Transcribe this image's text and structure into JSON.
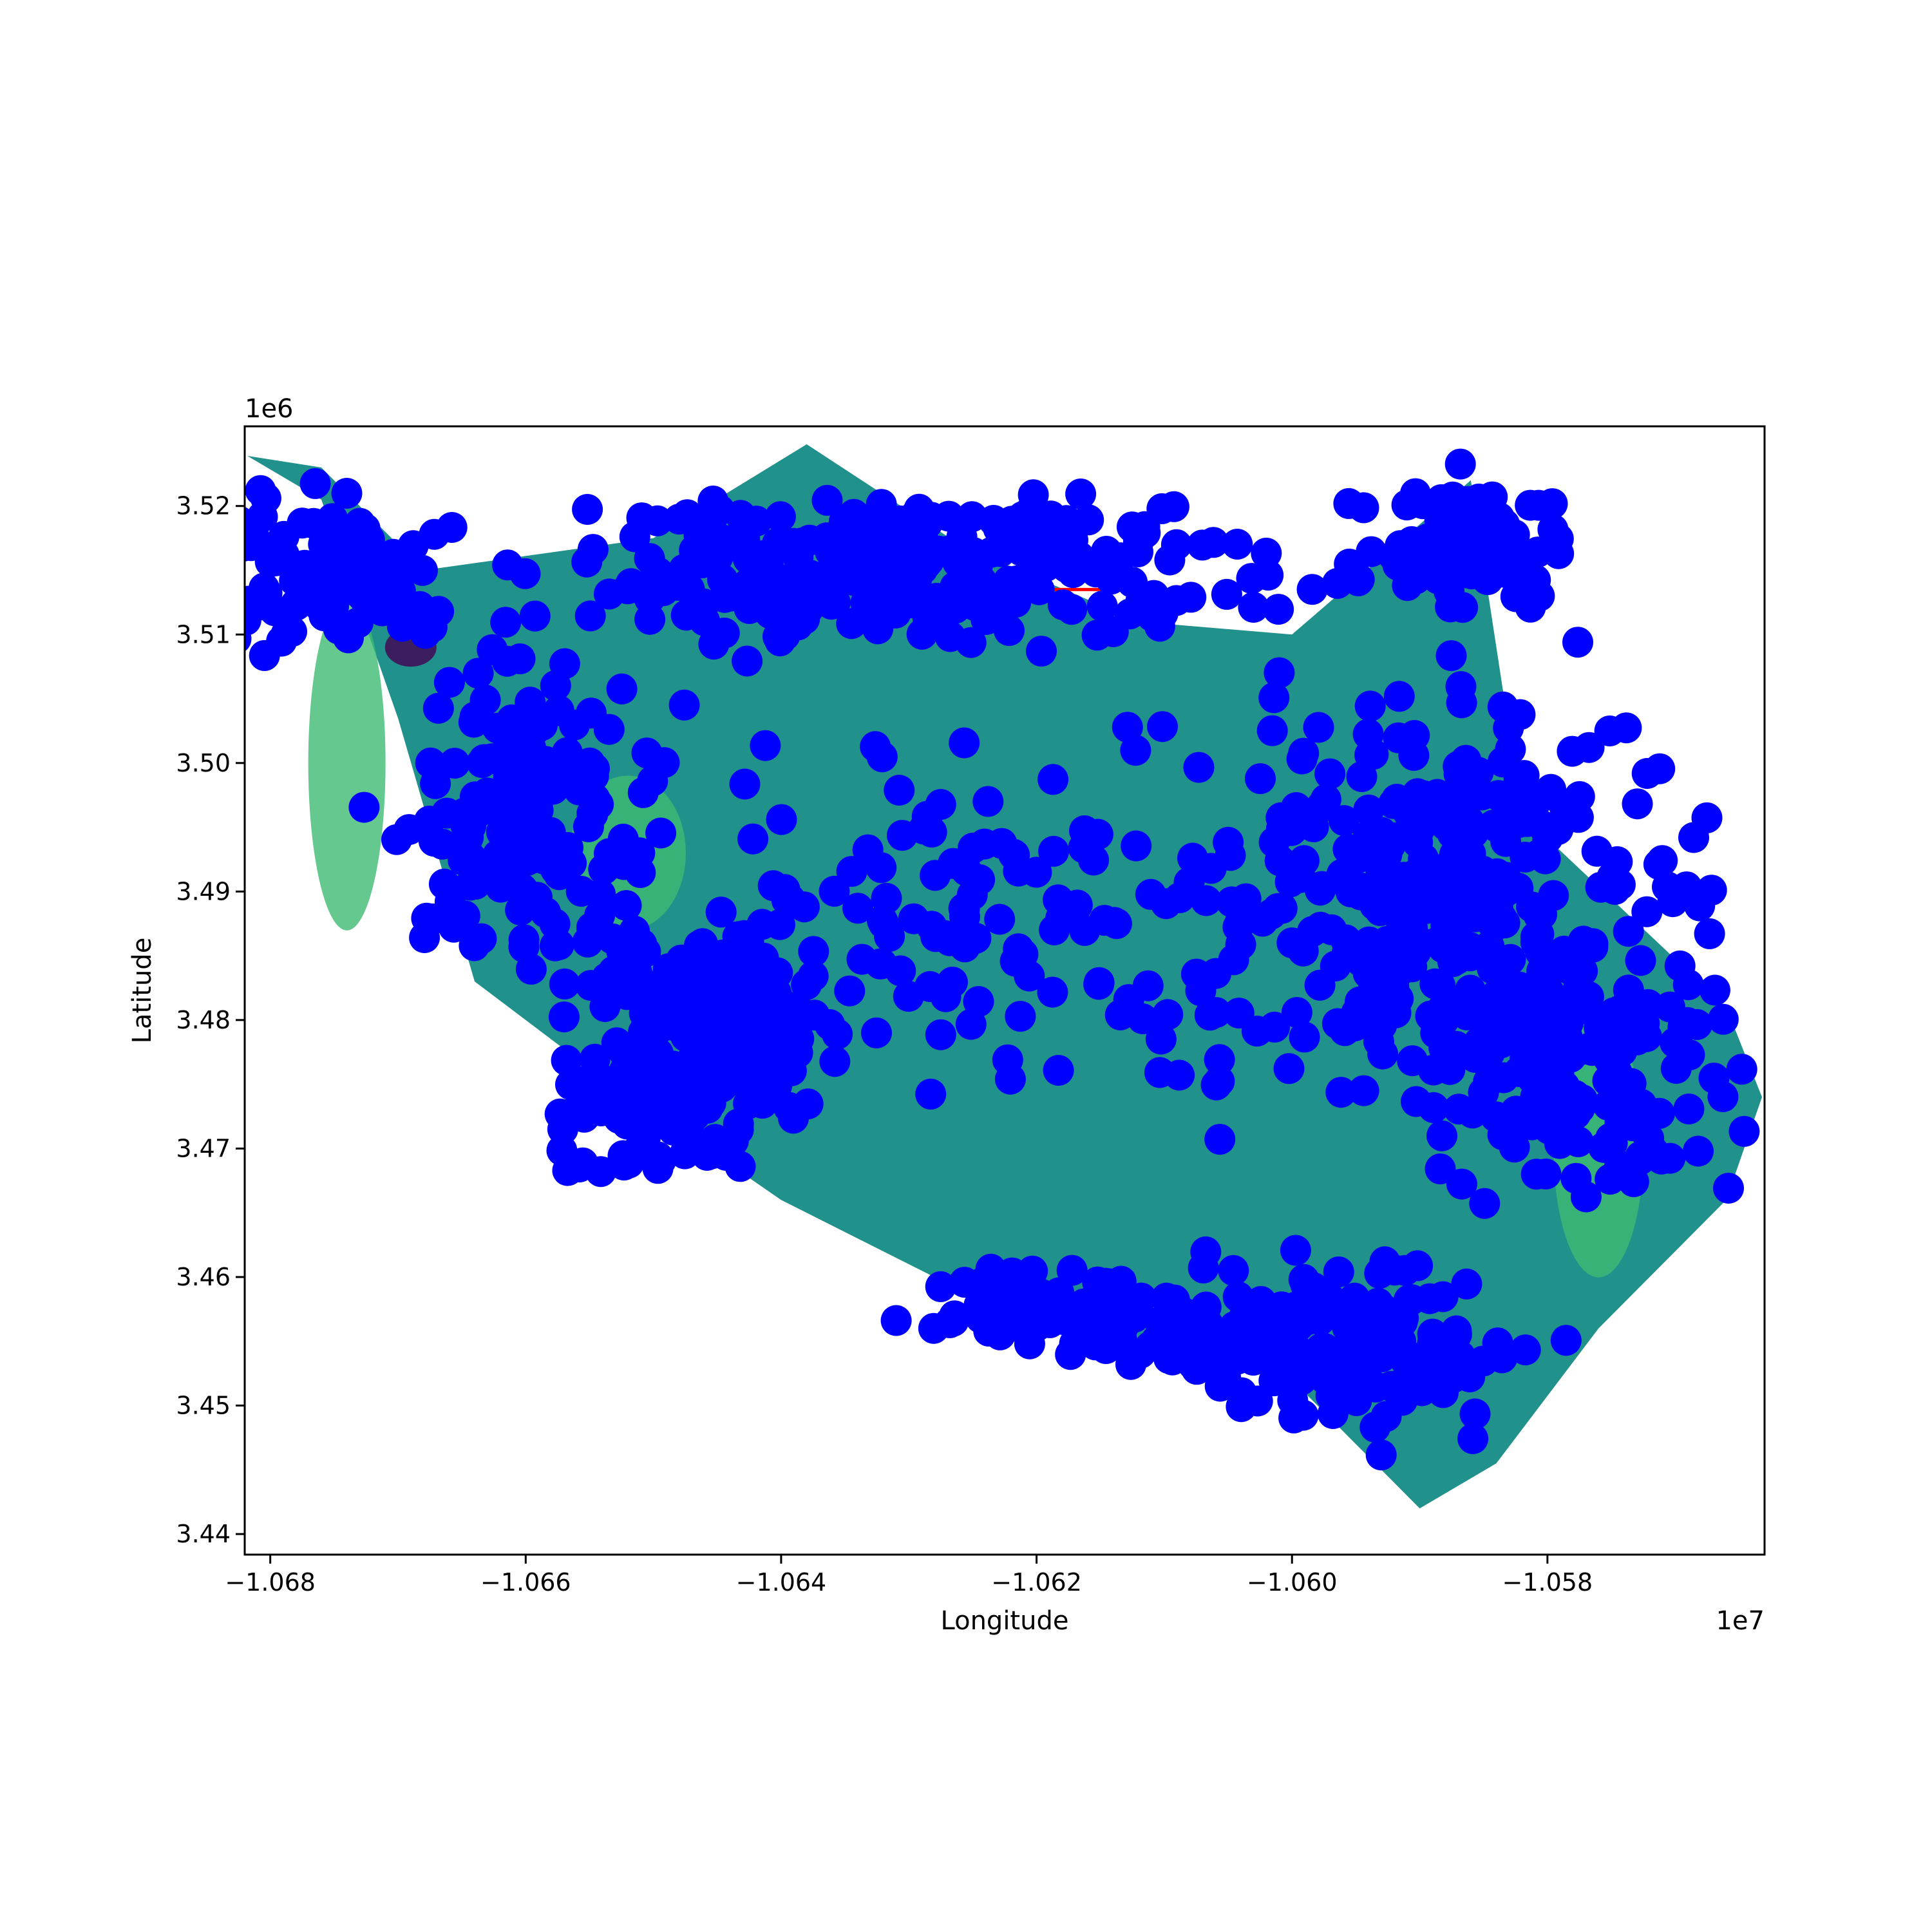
{
  "chart_data": {
    "type": "scatter",
    "title": "",
    "xlabel": "Longitude",
    "ylabel": "Latitude",
    "x_offset_label": "1e7",
    "y_offset_label": "1e6",
    "xlim": [
      -1.0682,
      -1.0563
    ],
    "ylim": [
      3.4384,
      3.5262
    ],
    "xticks": [
      -1.068,
      -1.066,
      -1.064,
      -1.062,
      -1.06,
      -1.058
    ],
    "xtick_labels": [
      "−1.068",
      "−1.066",
      "−1.064",
      "−1.062",
      "−1.060",
      "−1.058"
    ],
    "yticks": [
      3.44,
      3.45,
      3.46,
      3.47,
      3.48,
      3.49,
      3.5,
      3.51,
      3.52
    ],
    "ytick_labels": [
      "3.44",
      "3.45",
      "3.46",
      "3.47",
      "3.48",
      "3.49",
      "3.50",
      "3.51",
      "3.52"
    ],
    "grid": false,
    "legend": "none",
    "colors": {
      "region_fill": "#21918c",
      "region_light": "#3fbc73",
      "region_dark": "#440154",
      "points": "#0000ff",
      "boundary": "#ff0000",
      "frame": "#000000"
    },
    "region_outline": [
      [
        -1.06818,
        3.5239
      ],
      [
        -1.0676,
        3.5205
      ],
      [
        -1.067,
        3.5035
      ],
      [
        -1.0664,
        3.483
      ],
      [
        -1.0656,
        3.477
      ],
      [
        -1.064,
        3.466
      ],
      [
        -1.062,
        3.456
      ],
      [
        -1.06,
        3.452
      ],
      [
        -1.059,
        3.442
      ],
      [
        -1.0584,
        3.4455
      ],
      [
        -1.0576,
        3.456
      ],
      [
        -1.0566,
        3.466
      ],
      [
        -1.05632,
        3.474
      ],
      [
        -1.0566,
        3.481
      ],
      [
        -1.0582,
        3.496
      ],
      [
        -1.0586,
        3.522
      ],
      [
        -1.06,
        3.51
      ],
      [
        -1.0612,
        3.511
      ],
      [
        -1.0626,
        3.517
      ],
      [
        -1.0638,
        3.5248
      ],
      [
        -1.065,
        3.5175
      ],
      [
        -1.0668,
        3.515
      ],
      [
        -1.0676,
        3.523
      ]
    ],
    "red_boundary": [
      [
        -1.0626,
        3.5135
      ],
      [
        -1.0611,
        3.5135
      ],
      [
        -1.0611,
        3.51
      ]
    ],
    "point_clusters": [
      {
        "center": [
          -1.0645,
          3.48
        ],
        "spread": [
          0.0009,
          0.006
        ],
        "count": 180
      },
      {
        "center": [
          -1.066,
          3.495
        ],
        "spread": [
          0.001,
          0.012
        ],
        "count": 160
      },
      {
        "center": [
          -1.063,
          3.515
        ],
        "spread": [
          0.0025,
          0.006
        ],
        "count": 260
      },
      {
        "center": [
          -1.0588,
          3.49
        ],
        "spread": [
          0.002,
          0.015
        ],
        "count": 320
      },
      {
        "center": [
          -1.0578,
          3.476
        ],
        "spread": [
          0.0012,
          0.01
        ],
        "count": 150
      },
      {
        "center": [
          -1.0595,
          3.455
        ],
        "spread": [
          0.0012,
          0.007
        ],
        "count": 130
      },
      {
        "center": [
          -1.062,
          3.458
        ],
        "spread": [
          0.001,
          0.003
        ],
        "count": 70
      },
      {
        "center": [
          -1.065,
          3.473
        ],
        "spread": [
          0.0008,
          0.005
        ],
        "count": 90
      },
      {
        "center": [
          -1.0676,
          3.515
        ],
        "spread": [
          0.001,
          0.006
        ],
        "count": 100
      },
      {
        "center": [
          -1.0587,
          3.517
        ],
        "spread": [
          0.0008,
          0.005
        ],
        "count": 90
      },
      {
        "center": [
          -1.0625,
          3.488
        ],
        "spread": [
          0.002,
          0.012
        ],
        "count": 110
      },
      {
        "center": [
          -1.0608,
          3.455
        ],
        "spread": [
          0.0008,
          0.003
        ],
        "count": 60
      }
    ]
  }
}
